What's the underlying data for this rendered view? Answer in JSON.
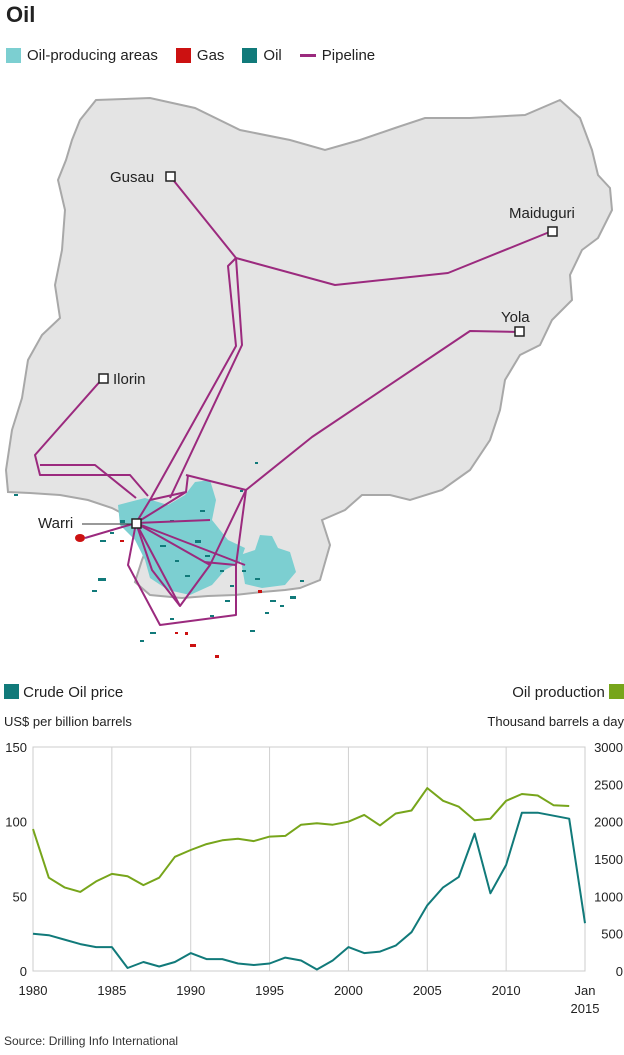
{
  "title": "Oil",
  "legend": {
    "items": [
      {
        "label": "Oil-producing areas",
        "color": "#7ccfd1",
        "kind": "area"
      },
      {
        "label": "Gas",
        "color": "#cc1111",
        "kind": "box"
      },
      {
        "label": "Oil",
        "color": "#117a7a",
        "kind": "box"
      },
      {
        "label": "Pipeline",
        "color": "#9b2a7e",
        "kind": "line"
      }
    ]
  },
  "map": {
    "cities": [
      {
        "name": "Gusau"
      },
      {
        "name": "Maiduguri"
      },
      {
        "name": "Yola"
      },
      {
        "name": "Ilorin"
      },
      {
        "name": "Warri"
      }
    ],
    "colors": {
      "land": "#e4e4e4",
      "border": "#a8a8a8",
      "pipeline": "#9b2a7e",
      "area": "#7ccfd1",
      "oil": "#117a7a",
      "gas": "#cc1111"
    }
  },
  "chart_header": {
    "left_label": "Crude Oil price",
    "left_sub": "US$ per billion barrels",
    "left_color": "#117a7a",
    "right_label": "Oil production",
    "right_sub": "Thousand barrels a day",
    "right_color": "#77a51b"
  },
  "chart_data": {
    "type": "line",
    "x_ticks": [
      "1980",
      "1985",
      "1990",
      "1995",
      "2000",
      "2005",
      "2010",
      "Jan 2015"
    ],
    "x_range": [
      1980,
      2015
    ],
    "y_left": {
      "ticks": [
        0,
        50,
        100,
        150
      ],
      "range": [
        0,
        150
      ]
    },
    "y_right": {
      "ticks": [
        0,
        500,
        1000,
        1500,
        2000,
        2500,
        3000
      ],
      "range": [
        0,
        3000
      ]
    },
    "grid": "vertical",
    "series": [
      {
        "name": "Crude Oil price",
        "axis": "left",
        "color": "#117a7a",
        "x": [
          1980,
          1981,
          1982,
          1983,
          1984,
          1985,
          1986,
          1987,
          1988,
          1989,
          1990,
          1991,
          1992,
          1993,
          1994,
          1995,
          1996,
          1997,
          1998,
          1999,
          2000,
          2001,
          2002,
          2003,
          2004,
          2005,
          2006,
          2007,
          2008,
          2009,
          2010,
          2011,
          2012,
          2013,
          2014,
          2015
        ],
        "values": [
          25,
          24,
          21,
          18,
          16,
          16,
          2,
          6,
          3,
          6,
          12,
          8,
          8,
          5,
          4,
          5,
          9,
          7,
          1,
          7,
          16,
          12,
          13,
          17,
          26,
          44,
          56,
          63,
          92,
          52,
          71,
          106,
          106,
          104,
          102,
          32
        ]
      },
      {
        "name": "Oil production",
        "axis": "right",
        "color": "#77a51b",
        "x": [
          1980,
          1981,
          1982,
          1983,
          1984,
          1985,
          1986,
          1987,
          1988,
          1989,
          1990,
          1991,
          1992,
          1993,
          1994,
          1995,
          1996,
          1997,
          1998,
          1999,
          2000,
          2001,
          2002,
          2003,
          2004,
          2005,
          2006,
          2007,
          2008,
          2009,
          2010,
          2011,
          2012,
          2013,
          2014
        ],
        "values": [
          1900,
          1250,
          1120,
          1060,
          1200,
          1300,
          1270,
          1150,
          1250,
          1530,
          1620,
          1700,
          1750,
          1770,
          1740,
          1800,
          1810,
          1960,
          1980,
          1960,
          2000,
          2090,
          1950,
          2110,
          2150,
          2450,
          2280,
          2200,
          2020,
          2040,
          2280,
          2370,
          2350,
          2220,
          2210
        ]
      }
    ]
  },
  "source": "Source: Drilling Info International"
}
